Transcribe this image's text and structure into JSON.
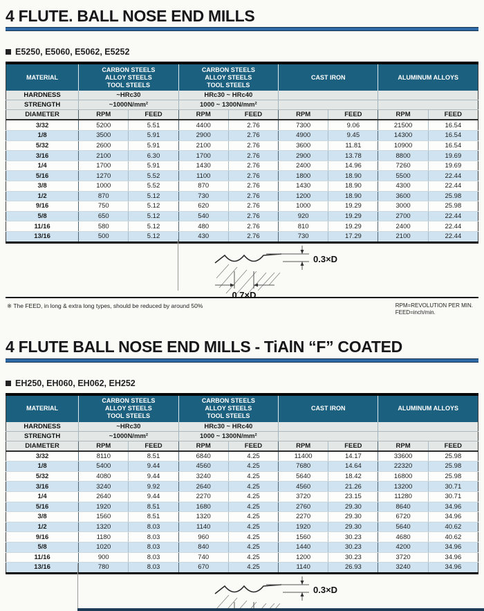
{
  "labels": {
    "material": "MATERIAL",
    "hardness": "HARDNESS",
    "strength": "STRENGTH",
    "diameter": "DIAMETER",
    "rpm": "RPM",
    "feed": "FEED"
  },
  "diagram": {
    "depth_label": "0.3×D",
    "stepover_label": "0.7×D"
  },
  "footnote": {
    "note": "※ The FEED, in long & extra long types, should be reduced by around 50%",
    "legend_rpm": "RPM=REVOLUTION PER MIN.",
    "legend_feed": "FEED=inch/min."
  },
  "colors": {
    "header_teal": "#1b607f",
    "stripe_blue": "#cfe3f0",
    "rule_blue": "#2e6ba6"
  },
  "sections": [
    {
      "title": "4 FLUTE. BALL NOSE END MILLS",
      "series": "E5250, E5060, E5062, E5252",
      "table": {
        "groups": [
          {
            "name": "CARBON STEELS\nALLOY STEELS\nTOOL STEELS",
            "hardness": "~HRc30",
            "strength": "~1000N/mm²"
          },
          {
            "name": "CARBON STEELS\nALLOY STEELS\nTOOL STEELS",
            "hardness": "HRc30 ~ HRc40",
            "strength": "1000 ~ 1300N/mm²"
          },
          {
            "name": "CAST IRON",
            "hardness": "",
            "strength": ""
          },
          {
            "name": "ALUMINUM ALLOYS",
            "hardness": "",
            "strength": ""
          }
        ],
        "rows": [
          {
            "diameter": "3/32",
            "values": [
              "5200",
              "5.51",
              "4400",
              "2.76",
              "7300",
              "9.06",
              "21500",
              "16.54"
            ]
          },
          {
            "diameter": "1/8",
            "values": [
              "3500",
              "5.91",
              "2900",
              "2.76",
              "4900",
              "9.45",
              "14300",
              "16.54"
            ]
          },
          {
            "diameter": "5/32",
            "values": [
              "2600",
              "5.91",
              "2100",
              "2.76",
              "3600",
              "11.81",
              "10900",
              "16.54"
            ]
          },
          {
            "diameter": "3/16",
            "values": [
              "2100",
              "6.30",
              "1700",
              "2.76",
              "2900",
              "13.78",
              "8800",
              "19.69"
            ]
          },
          {
            "diameter": "1/4",
            "values": [
              "1700",
              "5.91",
              "1430",
              "2.76",
              "2400",
              "14.96",
              "7260",
              "19.69"
            ]
          },
          {
            "diameter": "5/16",
            "values": [
              "1270",
              "5.52",
              "1100",
              "2.76",
              "1800",
              "18.90",
              "5500",
              "22.44"
            ]
          },
          {
            "diameter": "3/8",
            "values": [
              "1000",
              "5.52",
              "870",
              "2.76",
              "1430",
              "18.90",
              "4300",
              "22.44"
            ]
          },
          {
            "diameter": "1/2",
            "values": [
              "870",
              "5.12",
              "730",
              "2.76",
              "1200",
              "18.90",
              "3600",
              "25.98"
            ]
          },
          {
            "diameter": "9/16",
            "values": [
              "750",
              "5.12",
              "620",
              "2.76",
              "1000",
              "19.29",
              "3000",
              "25.98"
            ]
          },
          {
            "diameter": "5/8",
            "values": [
              "650",
              "5.12",
              "540",
              "2.76",
              "920",
              "19.29",
              "2700",
              "22.44"
            ]
          },
          {
            "diameter": "11/16",
            "values": [
              "580",
              "5.12",
              "480",
              "2.76",
              "810",
              "19.29",
              "2400",
              "22.44"
            ]
          },
          {
            "diameter": "13/16",
            "values": [
              "500",
              "5.12",
              "430",
              "2.76",
              "730",
              "17.29",
              "2100",
              "22.44"
            ]
          }
        ]
      }
    },
    {
      "title": "4 FLUTE BALL NOSE END MILLS - TiAlN “F” COATED",
      "series": "EH250, EH060, EH062, EH252",
      "table": {
        "groups": [
          {
            "name": "CARBON STEELS\nALLOY STEELS\nTOOL STEELS",
            "hardness": "~HRc30",
            "strength": "~1000N/mm²"
          },
          {
            "name": "CARBON STEELS\nALLOY STEELS\nTOOL STEELS",
            "hardness": "HRc30 ~ HRc40",
            "strength": "1000 ~ 1300N/mm²"
          },
          {
            "name": "CAST IRON",
            "hardness": "",
            "strength": ""
          },
          {
            "name": "ALUMINUM ALLOYS",
            "hardness": "",
            "strength": ""
          }
        ],
        "rows": [
          {
            "diameter": "3/32",
            "values": [
              "8110",
              "8.51",
              "6840",
              "4.25",
              "11400",
              "14.17",
              "33600",
              "25.98"
            ]
          },
          {
            "diameter": "1/8",
            "values": [
              "5400",
              "9.44",
              "4560",
              "4.25",
              "7680",
              "14.64",
              "22320",
              "25.98"
            ]
          },
          {
            "diameter": "5/32",
            "values": [
              "4080",
              "9.44",
              "3240",
              "4.25",
              "5640",
              "18.42",
              "16800",
              "25.98"
            ]
          },
          {
            "diameter": "3/16",
            "values": [
              "3240",
              "9.92",
              "2640",
              "4.25",
              "4560",
              "21.26",
              "13200",
              "30.71"
            ]
          },
          {
            "diameter": "1/4",
            "values": [
              "2640",
              "9.44",
              "2270",
              "4.25",
              "3720",
              "23.15",
              "11280",
              "30.71"
            ]
          },
          {
            "diameter": "5/16",
            "values": [
              "1920",
              "8.51",
              "1680",
              "4.25",
              "2760",
              "29.30",
              "8640",
              "34.96"
            ]
          },
          {
            "diameter": "3/8",
            "values": [
              "1560",
              "8.51",
              "1320",
              "4.25",
              "2270",
              "29.30",
              "6720",
              "34.96"
            ]
          },
          {
            "diameter": "1/2",
            "values": [
              "1320",
              "8.03",
              "1140",
              "4.25",
              "1920",
              "29.30",
              "5640",
              "40.62"
            ]
          },
          {
            "diameter": "9/16",
            "values": [
              "1180",
              "8.03",
              "960",
              "4.25",
              "1560",
              "30.23",
              "4680",
              "40.62"
            ]
          },
          {
            "diameter": "5/8",
            "values": [
              "1020",
              "8.03",
              "840",
              "4.25",
              "1440",
              "30.23",
              "4200",
              "34.96"
            ]
          },
          {
            "diameter": "11/16",
            "values": [
              "900",
              "8.03",
              "740",
              "4.25",
              "1200",
              "30.23",
              "3720",
              "34.96"
            ]
          },
          {
            "diameter": "13/16",
            "values": [
              "780",
              "8.03",
              "670",
              "4.25",
              "1140",
              "26.93",
              "3240",
              "34.96"
            ]
          }
        ]
      }
    }
  ]
}
